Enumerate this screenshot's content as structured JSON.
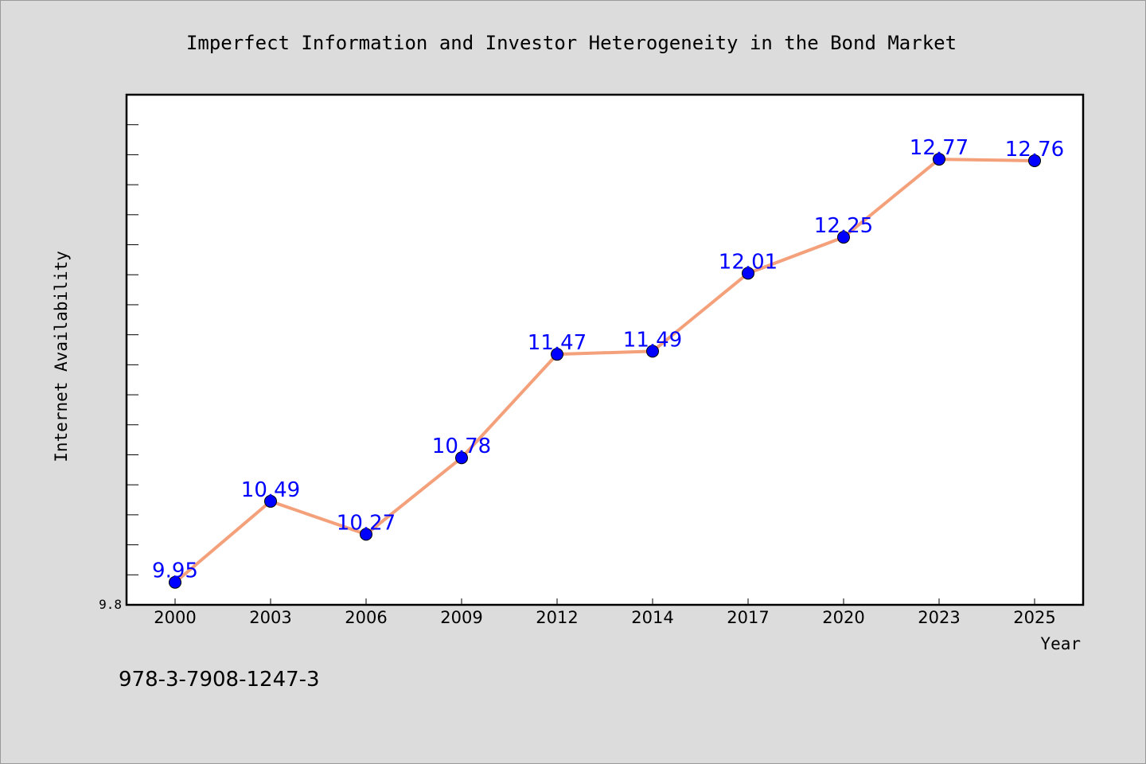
{
  "chart_data": {
    "type": "line",
    "title": "Imperfect Information and Investor Heterogeneity in the Bond Market",
    "xlabel": "Year",
    "ylabel": "Internet Availability",
    "categories": [
      "2000",
      "2003",
      "2006",
      "2009",
      "2012",
      "2014",
      "2017",
      "2020",
      "2023",
      "2025"
    ],
    "series": [
      {
        "values": [
          9.95,
          10.49,
          10.27,
          10.78,
          11.47,
          11.49,
          12.01,
          12.25,
          12.77,
          12.76
        ],
        "data_labels": [
          "9.95",
          "10.49",
          "10.27",
          "10.78",
          "11.47",
          "11.49",
          "12.01",
          "12.25",
          "12.77",
          "12.76"
        ]
      }
    ],
    "ylim": [
      9.8,
      13.2
    ],
    "y_tick_labels": [
      {
        "value": 9.8,
        "label": "9.8"
      }
    ],
    "y_minor_tick_step": 0.2,
    "grid": false,
    "legend": "none",
    "colors": {
      "line": "#f4a07a",
      "marker": "#0000ff",
      "marker_edge": "#000000",
      "data_label": "#0000ff",
      "plot_bg": "#ffffff",
      "page_bg": "#dcdcdc"
    }
  },
  "footer": {
    "code": "978-3-7908-1247-3"
  }
}
